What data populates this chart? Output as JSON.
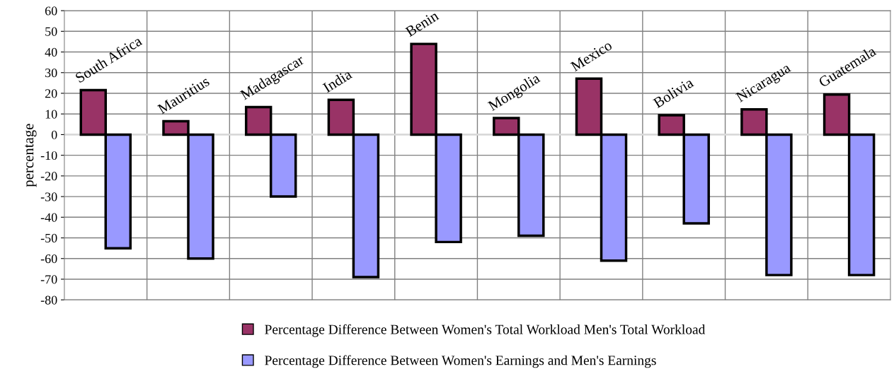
{
  "chart_data": {
    "type": "bar",
    "ylabel": "percentage",
    "categories": [
      "South Africa",
      "Mauritius",
      "Madagascar",
      "India",
      "Benin",
      "Mongolia",
      "Mexico",
      "Bolivia",
      "Nicaragua",
      "Guatemala"
    ],
    "series": [
      {
        "name": "Percentage Difference Between Women's Total Workload Men's Total Workload",
        "color": "#993366",
        "values": [
          21.5,
          6.5,
          13.3,
          16.8,
          43.9,
          8,
          27.1,
          9.4,
          12.2,
          19.4
        ]
      },
      {
        "name": "Percentage Difference Between Women's Earnings and Men's Earnings",
        "color": "#9999ff",
        "values": [
          -55,
          -60,
          -30,
          -69,
          -52,
          -49,
          -61,
          -43,
          -68,
          -68
        ]
      }
    ],
    "ylim": [
      -80,
      60
    ],
    "yticks": [
      -80,
      -70,
      -60,
      -50,
      -40,
      -30,
      -20,
      -10,
      0,
      10,
      20,
      30,
      40,
      50,
      60
    ],
    "grid": true,
    "legend": "bottom"
  }
}
